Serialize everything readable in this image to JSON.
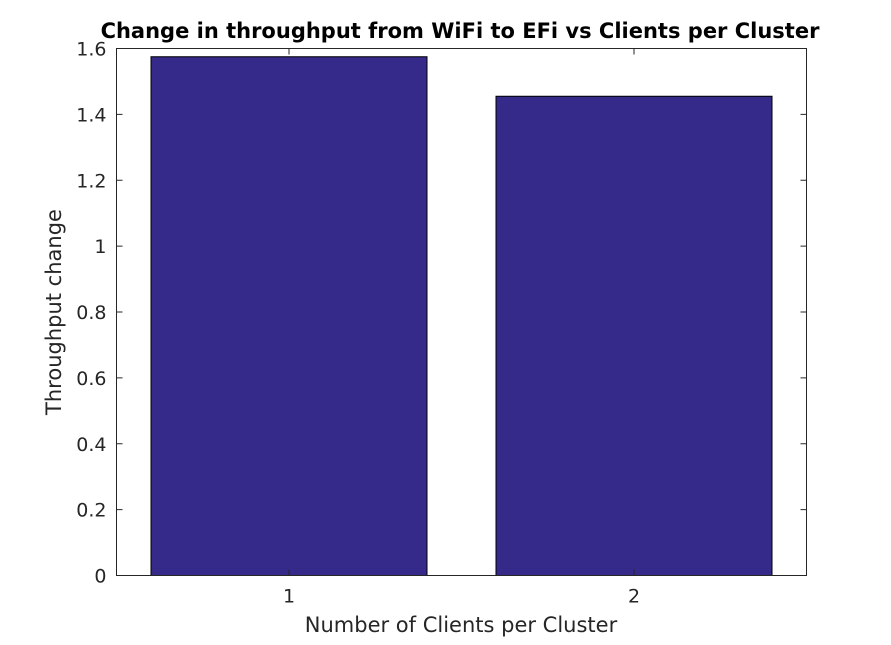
{
  "chart_data": {
    "type": "bar",
    "title": "Change in throughput from WiFi to EFi vs Clients per Cluster",
    "xlabel": "Number of Clients per Cluster",
    "ylabel": "Throughput change",
    "categories": [
      "1",
      "2"
    ],
    "values": [
      1.575,
      1.455
    ],
    "ylim": [
      0,
      1.6
    ],
    "yticks": [
      "0",
      "0.2",
      "0.4",
      "0.6",
      "0.8",
      "1",
      "1.2",
      "1.4",
      "1.6"
    ],
    "bar_color": "#35298a",
    "grid": false,
    "legend": "none"
  }
}
